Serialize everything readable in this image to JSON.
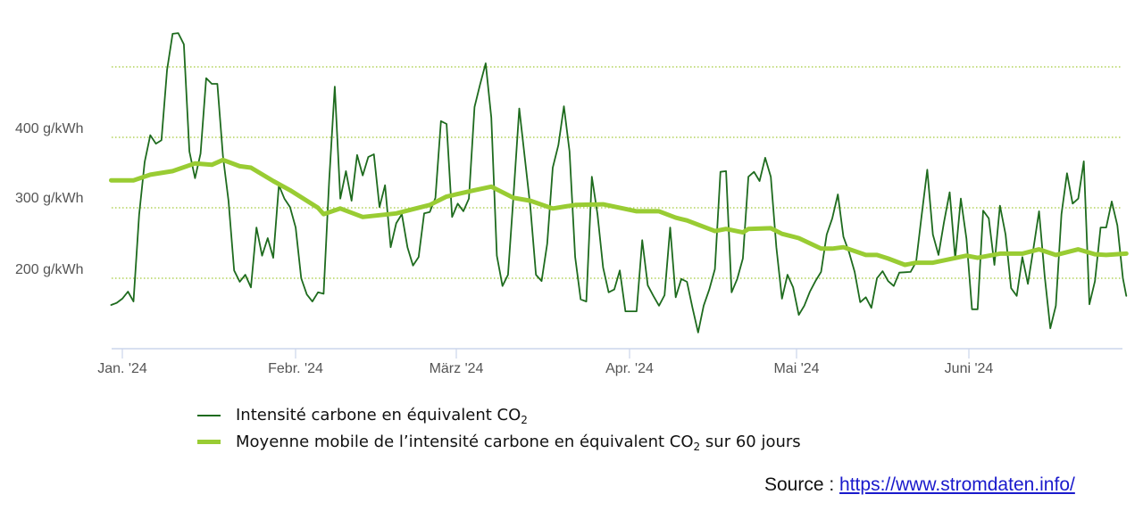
{
  "chart_data": {
    "type": "line",
    "title": "",
    "xlabel": "",
    "ylabel": "g/kWh",
    "ylim": [
      100,
      500
    ],
    "grid": true,
    "legend_position": "bottom",
    "y_ticks": [
      {
        "value": 500,
        "label": ""
      },
      {
        "value": 400,
        "label": "400 g/kWh"
      },
      {
        "value": 300,
        "label": "300 g/kWh"
      },
      {
        "value": 200,
        "label": "200 g/kWh"
      }
    ],
    "x_ticks": [
      {
        "day": 0,
        "label": "Jan. '24"
      },
      {
        "day": 31,
        "label": "Febr. '24"
      },
      {
        "day": 60,
        "label": "März '24"
      },
      {
        "day": 91,
        "label": "Apr. '24"
      },
      {
        "day": 121,
        "label": "Mai '24"
      },
      {
        "day": 152,
        "label": "Juni '24"
      }
    ],
    "x_unit": "days since 2024-01-01",
    "series": [
      {
        "name": "Intensité carbone en équivalent CO2",
        "color": "#1e6b1e",
        "width": 1.8,
        "points": [
          [
            -2,
            162
          ],
          [
            -1,
            165
          ],
          [
            0,
            171
          ],
          [
            1,
            181
          ],
          [
            2,
            167
          ],
          [
            3,
            290
          ],
          [
            4,
            365
          ],
          [
            5,
            403
          ],
          [
            6,
            391
          ],
          [
            7,
            396
          ],
          [
            8,
            496
          ],
          [
            9,
            547
          ],
          [
            10,
            548
          ],
          [
            11,
            532
          ],
          [
            12,
            380
          ],
          [
            13,
            342
          ],
          [
            14,
            377
          ],
          [
            15,
            484
          ],
          [
            16,
            476
          ],
          [
            17,
            476
          ],
          [
            18,
            373
          ],
          [
            19,
            310
          ],
          [
            20,
            211
          ],
          [
            21,
            195
          ],
          [
            22,
            205
          ],
          [
            23,
            187
          ],
          [
            24,
            272
          ],
          [
            25,
            232
          ],
          [
            26,
            257
          ],
          [
            27,
            229
          ],
          [
            28,
            332
          ],
          [
            29,
            313
          ],
          [
            30,
            301
          ],
          [
            31,
            272
          ],
          [
            32,
            200
          ],
          [
            33,
            177
          ],
          [
            34,
            167
          ],
          [
            35,
            180
          ],
          [
            36,
            178
          ],
          [
            37,
            338
          ],
          [
            38,
            472
          ],
          [
            39,
            313
          ],
          [
            40,
            352
          ],
          [
            41,
            310
          ],
          [
            42,
            375
          ],
          [
            43,
            346
          ],
          [
            44,
            372
          ],
          [
            45,
            376
          ],
          [
            46,
            301
          ],
          [
            47,
            332
          ],
          [
            48,
            244
          ],
          [
            49,
            278
          ],
          [
            50,
            291
          ],
          [
            51,
            244
          ],
          [
            52,
            218
          ],
          [
            53,
            230
          ],
          [
            54,
            292
          ],
          [
            55,
            294
          ],
          [
            56,
            314
          ],
          [
            57,
            423
          ],
          [
            58,
            419
          ],
          [
            59,
            287
          ],
          [
            60,
            306
          ],
          [
            61,
            295
          ],
          [
            62,
            313
          ],
          [
            63,
            443
          ],
          [
            64,
            475
          ],
          [
            65,
            505
          ],
          [
            66,
            428
          ],
          [
            67,
            232
          ],
          [
            68,
            189
          ],
          [
            69,
            205
          ],
          [
            70,
            320
          ],
          [
            71,
            441
          ],
          [
            72,
            371
          ],
          [
            73,
            300
          ],
          [
            74,
            205
          ],
          [
            75,
            196
          ],
          [
            76,
            249
          ],
          [
            77,
            357
          ],
          [
            78,
            389
          ],
          [
            79,
            444
          ],
          [
            80,
            380
          ],
          [
            81,
            230
          ],
          [
            82,
            170
          ],
          [
            83,
            167
          ],
          [
            84,
            344
          ],
          [
            85,
            291
          ],
          [
            86,
            215
          ],
          [
            87,
            180
          ],
          [
            88,
            184
          ],
          [
            89,
            211
          ],
          [
            90,
            153
          ],
          [
            92,
            153
          ],
          [
            93,
            254
          ],
          [
            94,
            190
          ],
          [
            95,
            175
          ],
          [
            96,
            161
          ],
          [
            97,
            176
          ],
          [
            98,
            272
          ],
          [
            99,
            173
          ],
          [
            100,
            199
          ],
          [
            101,
            195
          ],
          [
            102,
            158
          ],
          [
            103,
            123
          ],
          [
            104,
            161
          ],
          [
            105,
            184
          ],
          [
            106,
            213
          ],
          [
            107,
            351
          ],
          [
            108,
            352
          ],
          [
            109,
            180
          ],
          [
            110,
            199
          ],
          [
            111,
            228
          ],
          [
            112,
            344
          ],
          [
            113,
            351
          ],
          [
            114,
            338
          ],
          [
            115,
            371
          ],
          [
            116,
            344
          ],
          [
            117,
            244
          ],
          [
            118,
            171
          ],
          [
            119,
            205
          ],
          [
            120,
            187
          ],
          [
            121,
            148
          ],
          [
            122,
            161
          ],
          [
            123,
            181
          ],
          [
            124,
            196
          ],
          [
            125,
            209
          ],
          [
            126,
            262
          ],
          [
            127,
            285
          ],
          [
            128,
            319
          ],
          [
            129,
            259
          ],
          [
            130,
            237
          ],
          [
            131,
            209
          ],
          [
            132,
            166
          ],
          [
            133,
            173
          ],
          [
            134,
            158
          ],
          [
            135,
            200
          ],
          [
            136,
            210
          ],
          [
            137,
            196
          ],
          [
            138,
            189
          ],
          [
            139,
            208
          ],
          [
            141,
            209
          ],
          [
            142,
            223
          ],
          [
            143,
            290
          ],
          [
            144,
            354
          ],
          [
            145,
            262
          ],
          [
            146,
            233
          ],
          [
            147,
            280
          ],
          [
            148,
            322
          ],
          [
            149,
            228
          ],
          [
            150,
            313
          ],
          [
            151,
            256
          ],
          [
            152,
            156
          ],
          [
            153,
            156
          ],
          [
            154,
            296
          ],
          [
            155,
            285
          ],
          [
            156,
            219
          ],
          [
            157,
            303
          ],
          [
            158,
            262
          ],
          [
            159,
            186
          ],
          [
            160,
            175
          ],
          [
            161,
            230
          ],
          [
            162,
            192
          ],
          [
            163,
            243
          ],
          [
            164,
            295
          ],
          [
            165,
            203
          ],
          [
            166,
            129
          ],
          [
            167,
            161
          ],
          [
            168,
            291
          ],
          [
            169,
            349
          ],
          [
            170,
            306
          ],
          [
            171,
            313
          ],
          [
            172,
            366
          ],
          [
            173,
            163
          ],
          [
            174,
            196
          ],
          [
            175,
            272
          ],
          [
            176,
            272
          ],
          [
            177,
            309
          ],
          [
            178,
            275
          ],
          [
            179,
            200
          ],
          [
            179.6,
            175
          ]
        ]
      },
      {
        "name": "Moyenne mobile de l'intensité carbone en équivalent CO2 sur 60 jours",
        "color": "#99cc33",
        "width": 5,
        "points": [
          [
            -2,
            339
          ],
          [
            2,
            339
          ],
          [
            5,
            347
          ],
          [
            9,
            352
          ],
          [
            13,
            363
          ],
          [
            16,
            361
          ],
          [
            18,
            368
          ],
          [
            21,
            359
          ],
          [
            23,
            357
          ],
          [
            27,
            338
          ],
          [
            30,
            325
          ],
          [
            35,
            300
          ],
          [
            36,
            291
          ],
          [
            39,
            299
          ],
          [
            43,
            287
          ],
          [
            49,
            292
          ],
          [
            55,
            304
          ],
          [
            58,
            316
          ],
          [
            63,
            325
          ],
          [
            66,
            330
          ],
          [
            70,
            314
          ],
          [
            73,
            310
          ],
          [
            77,
            299
          ],
          [
            81,
            304
          ],
          [
            86,
            305
          ],
          [
            92,
            295
          ],
          [
            96,
            295
          ],
          [
            99,
            286
          ],
          [
            101,
            282
          ],
          [
            106,
            267
          ],
          [
            108,
            270
          ],
          [
            111,
            265
          ],
          [
            112,
            270
          ],
          [
            116,
            271
          ],
          [
            118,
            263
          ],
          [
            121,
            257
          ],
          [
            125,
            242
          ],
          [
            127,
            242
          ],
          [
            129,
            244
          ],
          [
            133,
            233
          ],
          [
            135,
            233
          ],
          [
            137,
            228
          ],
          [
            140,
            219
          ],
          [
            142,
            222
          ],
          [
            145,
            222
          ],
          [
            151,
            232
          ],
          [
            153,
            229
          ],
          [
            157,
            235
          ],
          [
            161,
            235
          ],
          [
            164,
            241
          ],
          [
            167,
            233
          ],
          [
            171,
            241
          ],
          [
            174,
            234
          ],
          [
            176,
            233
          ],
          [
            179.6,
            235
          ]
        ]
      }
    ]
  },
  "colors": {
    "grid": "#a3c93a",
    "axis": "#ccd6eb",
    "tick_label": "#555555",
    "series_main": "#1e6b1e",
    "series_avg": "#99cc33",
    "link": "#1a1acc"
  },
  "legend": {
    "items": [
      {
        "text": "Intensité carbone en équivalent CO",
        "sub": "2",
        "after": ""
      },
      {
        "text": "Moyenne mobile de l’intensité carbone en équivalent CO",
        "sub": "2",
        "after": " sur 60 jours"
      }
    ]
  },
  "source": {
    "label": "Source : ",
    "link_text": "https://www.stromdaten.info/"
  }
}
